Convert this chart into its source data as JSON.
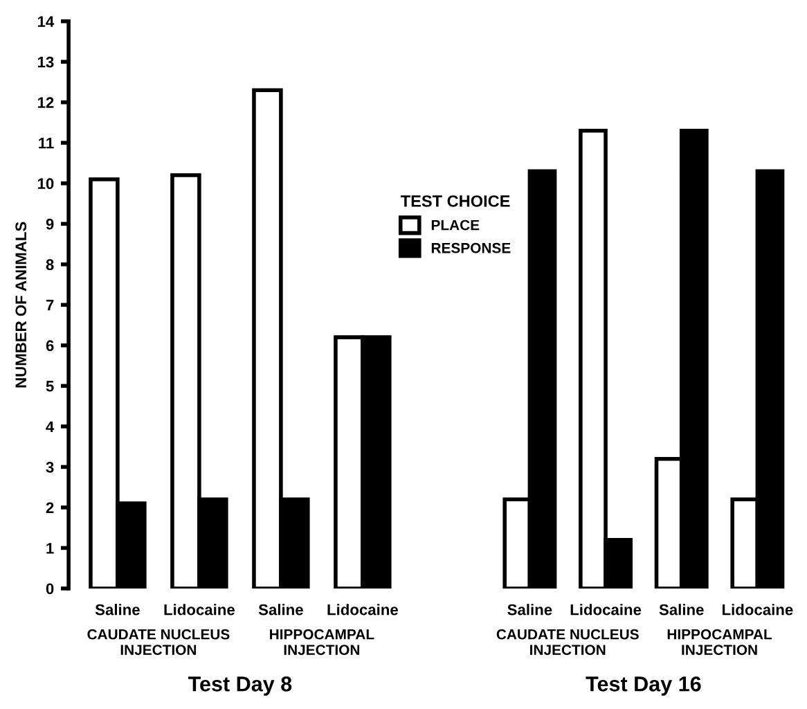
{
  "chart_data": [
    {
      "type": "bar",
      "categories": [
        "Saline",
        "Lidocaine",
        "Saline",
        "Lidocaine"
      ],
      "ylabel": "NUMBER OF ANIMALS",
      "xlabel": "Test Day 8",
      "ylim": [
        0,
        14
      ],
      "yticks": [
        0,
        1,
        2,
        3,
        4,
        5,
        6,
        7,
        8,
        9,
        10,
        11,
        12,
        13,
        14
      ],
      "legend": "right",
      "legend_title": "TEST CHOICE",
      "grid": false,
      "annotations": [
        "CAUDATE NUCLEUS\nINJECTION",
        "HIPPOCAMPAL\nINJECTION"
      ],
      "series": [
        {
          "name": "PLACE",
          "color": "#ffffff",
          "values": [
            10.1,
            10.2,
            12.3,
            6.2
          ]
        },
        {
          "name": "RESPONSE",
          "color": "#000000",
          "values": [
            2.1,
            2.2,
            2.2,
            6.2
          ]
        }
      ]
    },
    {
      "type": "bar",
      "categories": [
        "Saline",
        "Lidocaine",
        "Saline",
        "Lidocaine"
      ],
      "xlabel": "Test Day 16",
      "ylim": [
        0,
        14
      ],
      "yticks": [
        0,
        1,
        2,
        3,
        4,
        5,
        6,
        7,
        8,
        9,
        10,
        11,
        12,
        13,
        14
      ],
      "tick_labels": "x",
      "grid": false,
      "annotations": [
        "CAUDATE NUCLEUS\nINJECTION",
        "HIPPOCAMPAL\nINJECTION"
      ],
      "series": [
        {
          "color": "#ffffff",
          "values": [
            2.2,
            11.3,
            3.2,
            2.2
          ]
        },
        {
          "color": "#000000",
          "values": [
            10.3,
            1.2,
            11.3,
            10.3
          ]
        }
      ]
    }
  ]
}
